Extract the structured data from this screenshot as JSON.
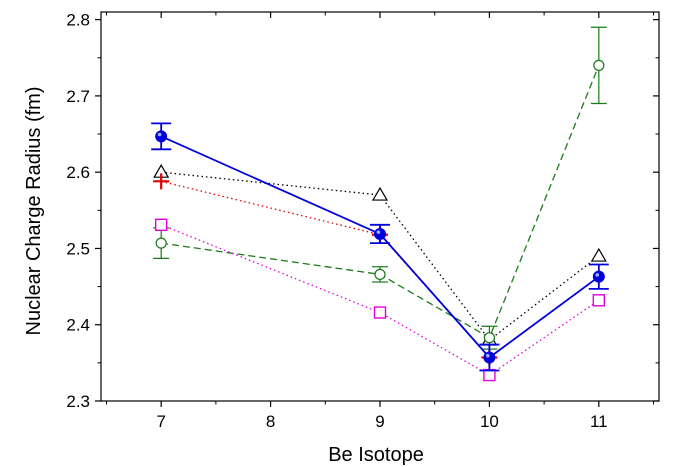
{
  "chart_data": {
    "type": "line",
    "title": "",
    "xlabel": "Be Isotope",
    "ylabel": "Nuclear Charge Radius (fm)",
    "xlim": [
      6.45,
      11.55
    ],
    "ylim": [
      2.3,
      2.81
    ],
    "xticks": [
      7,
      8,
      9,
      10,
      11
    ],
    "yticks": [
      2.3,
      2.4,
      2.5,
      2.6,
      2.7,
      2.8
    ],
    "xtick_labels": [
      "7",
      "8",
      "9",
      "10",
      "11"
    ],
    "ytick_labels": [
      "2.3",
      "2.4",
      "2.5",
      "2.6",
      "2.7",
      "2.8"
    ],
    "grid": false,
    "legend": "none",
    "series": [
      {
        "marker": "open-triangle",
        "color": "#000000",
        "line_style": "dotted",
        "x": [
          7,
          9,
          10,
          11
        ],
        "y": [
          2.6,
          2.57,
          2.38,
          2.49
        ]
      },
      {
        "marker": "plus",
        "color": "#e00000",
        "line_style": "dotted",
        "x": [
          7,
          9,
          10
        ],
        "y": [
          2.588,
          2.518,
          2.357
        ]
      },
      {
        "marker": "open-circle",
        "color": "#1a7a1a",
        "line_style": "dashed",
        "x": [
          7,
          9,
          10,
          11
        ],
        "y": [
          2.507,
          2.466,
          2.383,
          2.74
        ],
        "err": [
          0.02,
          0.01,
          0.015,
          0.05
        ]
      },
      {
        "marker": "open-square",
        "color": "#e000e0",
        "line_style": "dotted",
        "x": [
          7,
          9,
          10,
          11
        ],
        "y": [
          2.531,
          2.416,
          2.334,
          2.432
        ]
      },
      {
        "marker": "filled-circle",
        "color": "#0000dd",
        "line_style": "solid",
        "x": [
          7,
          9,
          10,
          11
        ],
        "y": [
          2.647,
          2.519,
          2.357,
          2.463
        ],
        "err": [
          0.017,
          0.012,
          0.017,
          0.016
        ]
      }
    ]
  }
}
